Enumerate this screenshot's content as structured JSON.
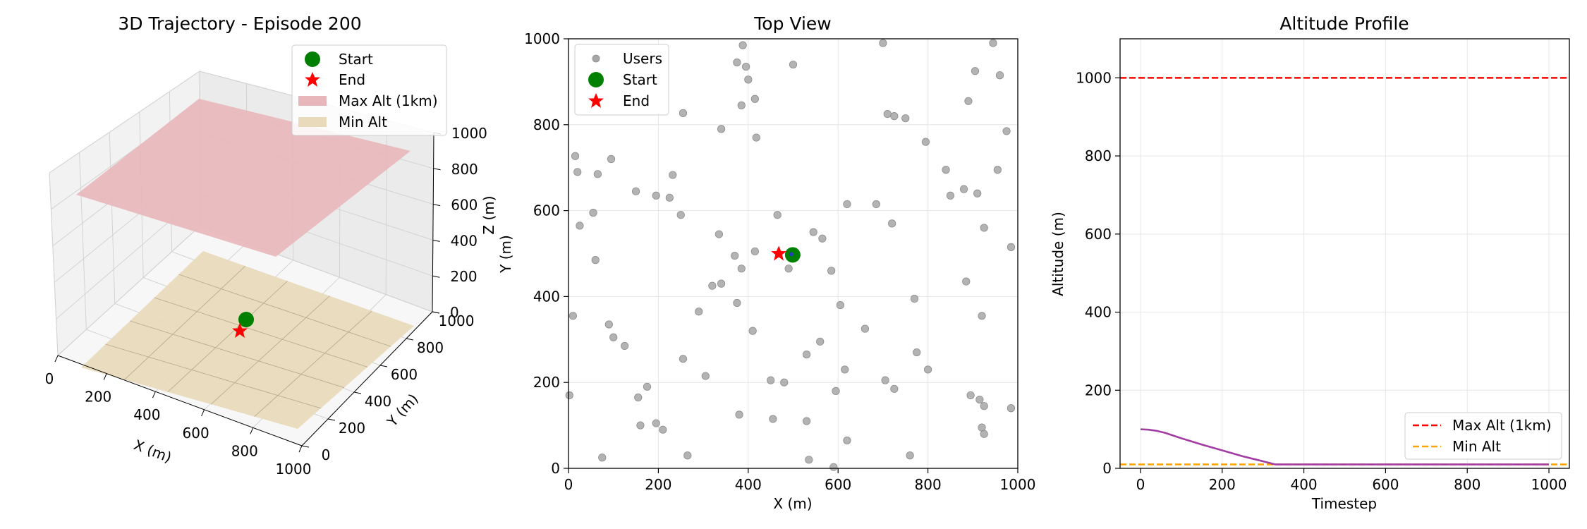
{
  "colors": {
    "users": "#a6a6a6",
    "start": "#008000",
    "end": "#ff0000",
    "trajectory": "#a23ca2",
    "max_alt_line": "#ff0000",
    "min_alt_line": "#ffa500",
    "max_alt_plane": "#e8b7bc",
    "min_alt_plane": "#e9dabb",
    "grid": "#e6e6e6"
  },
  "chart_data": [
    {
      "type": "scatter3d",
      "title": "3D Trajectory - Episode 200",
      "xlabel": "X (m)",
      "ylabel": "Y (m)",
      "zlabel": "Z (m)",
      "xlim": [
        0,
        1000
      ],
      "ylim": [
        0,
        1000
      ],
      "zlim": [
        0,
        1000
      ],
      "xticks": [
        "0",
        "200",
        "400",
        "600",
        "800",
        "1000"
      ],
      "yticks": [
        "0",
        "200",
        "400",
        "600",
        "800",
        "1000"
      ],
      "zticks": [
        "0",
        "200",
        "400",
        "600",
        "800",
        "1000"
      ],
      "grid": true,
      "legend_position": "top-right",
      "legend": [
        "Start",
        "End",
        "Max Alt (1km)",
        "Min Alt"
      ],
      "planes": [
        {
          "name": "Max Alt (1km)",
          "z": 1000
        },
        {
          "name": "Min Alt",
          "z": 10
        }
      ],
      "points": [
        {
          "name": "Start",
          "x": 495,
          "y": 498,
          "z": 100
        },
        {
          "name": "End",
          "x": 468,
          "y": 501,
          "z": 10
        }
      ]
    },
    {
      "type": "scatter",
      "title": "Top View",
      "xlabel": "X (m)",
      "ylabel": "Y (m)",
      "xlim": [
        0,
        1000
      ],
      "ylim": [
        0,
        1000
      ],
      "xticks": [
        "0",
        "200",
        "400",
        "600",
        "800",
        "1000"
      ],
      "yticks": [
        "0",
        "200",
        "400",
        "600",
        "800",
        "1000"
      ],
      "grid": true,
      "legend_position": "top-left",
      "legend": [
        "Users",
        "Start",
        "End"
      ],
      "users": [
        [
          2,
          170
        ],
        [
          10,
          355
        ],
        [
          15,
          727
        ],
        [
          20,
          690
        ],
        [
          25,
          565
        ],
        [
          55,
          595
        ],
        [
          60,
          485
        ],
        [
          65,
          685
        ],
        [
          75,
          25
        ],
        [
          90,
          335
        ],
        [
          95,
          720
        ],
        [
          100,
          305
        ],
        [
          125,
          285
        ],
        [
          150,
          645
        ],
        [
          155,
          165
        ],
        [
          160,
          100
        ],
        [
          175,
          190
        ],
        [
          195,
          105
        ],
        [
          195,
          635
        ],
        [
          210,
          90
        ],
        [
          225,
          630
        ],
        [
          232,
          683
        ],
        [
          250,
          590
        ],
        [
          255,
          255
        ],
        [
          255,
          827
        ],
        [
          265,
          30
        ],
        [
          290,
          365
        ],
        [
          305,
          215
        ],
        [
          320,
          425
        ],
        [
          335,
          545
        ],
        [
          340,
          430
        ],
        [
          340,
          790
        ],
        [
          370,
          495
        ],
        [
          375,
          385
        ],
        [
          375,
          945
        ],
        [
          380,
          125
        ],
        [
          385,
          465
        ],
        [
          385,
          845
        ],
        [
          388,
          985
        ],
        [
          395,
          935
        ],
        [
          400,
          905
        ],
        [
          410,
          320
        ],
        [
          415,
          505
        ],
        [
          415,
          860
        ],
        [
          418,
          770
        ],
        [
          450,
          205
        ],
        [
          455,
          115
        ],
        [
          465,
          590
        ],
        [
          480,
          200
        ],
        [
          490,
          465
        ],
        [
          500,
          940
        ],
        [
          530,
          265
        ],
        [
          530,
          110
        ],
        [
          535,
          20
        ],
        [
          545,
          550
        ],
        [
          560,
          295
        ],
        [
          565,
          535
        ],
        [
          585,
          460
        ],
        [
          590,
          3
        ],
        [
          595,
          180
        ],
        [
          605,
          380
        ],
        [
          615,
          230
        ],
        [
          620,
          65
        ],
        [
          620,
          615
        ],
        [
          660,
          325
        ],
        [
          685,
          615
        ],
        [
          700,
          990
        ],
        [
          705,
          205
        ],
        [
          710,
          825
        ],
        [
          720,
          570
        ],
        [
          725,
          185
        ],
        [
          725,
          820
        ],
        [
          750,
          815
        ],
        [
          760,
          30
        ],
        [
          770,
          395
        ],
        [
          775,
          270
        ],
        [
          795,
          760
        ],
        [
          800,
          230
        ],
        [
          840,
          695
        ],
        [
          850,
          635
        ],
        [
          880,
          650
        ],
        [
          885,
          435
        ],
        [
          890,
          855
        ],
        [
          895,
          170
        ],
        [
          905,
          925
        ],
        [
          910,
          640
        ],
        [
          915,
          160
        ],
        [
          920,
          95
        ],
        [
          920,
          355
        ],
        [
          925,
          560
        ],
        [
          925,
          80
        ],
        [
          925,
          145
        ],
        [
          945,
          990
        ],
        [
          955,
          695
        ],
        [
          960,
          915
        ],
        [
          975,
          785
        ],
        [
          985,
          515
        ],
        [
          985,
          140
        ]
      ],
      "points": [
        {
          "name": "Start",
          "x": 499,
          "y": 497
        },
        {
          "name": "End",
          "x": 468,
          "y": 500
        }
      ]
    },
    {
      "type": "line",
      "title": "Altitude Profile",
      "xlabel": "Timestep",
      "ylabel": "Altitude (m)",
      "xlim": [
        -50,
        1050
      ],
      "ylim": [
        0,
        1100
      ],
      "xticks": [
        "0",
        "200",
        "400",
        "600",
        "800",
        "1000"
      ],
      "yticks": [
        "0",
        "200",
        "400",
        "600",
        "800",
        "1000"
      ],
      "grid": true,
      "legend_position": "bottom-right",
      "legend": [
        "Max Alt (1km)",
        "Min Alt"
      ],
      "hlines": [
        {
          "name": "Max Alt (1km)",
          "y": 1000,
          "style": "dashed"
        },
        {
          "name": "Min Alt",
          "y": 10,
          "style": "dashed"
        }
      ],
      "series": [
        {
          "x": [
            0,
            20,
            40,
            60,
            80,
            100,
            150,
            200,
            250,
            300,
            330,
            400,
            600,
            800,
            1000
          ],
          "values": [
            100,
            99,
            96,
            91,
            84,
            77,
            61,
            46,
            31,
            18,
            10,
            10,
            10,
            10,
            10
          ]
        }
      ]
    }
  ]
}
